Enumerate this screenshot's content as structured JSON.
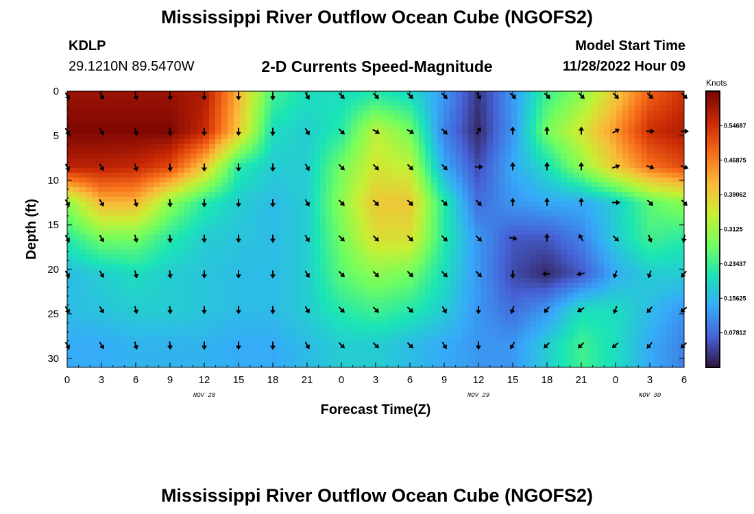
{
  "page": {
    "title": "Mississippi River Outflow Ocean Cube (NGOFS2)",
    "title_repeat": "Mississippi River Outflow Ocean Cube (NGOFS2)",
    "station_id": "KDLP",
    "station_coords": "29.1210N  89.5470W",
    "product": "2-D Currents Speed-Magnitude",
    "model_start_label": "Model Start Time",
    "model_start_value": "11/28/2022 Hour 09"
  },
  "chart_data": {
    "type": "heatmap",
    "title": "2-D Currents Speed-Magnitude",
    "xlabel": "Forecast Time(Z)",
    "ylabel": "Depth (ft)",
    "xlim": [
      0,
      54
    ],
    "ylim": [
      31,
      0
    ],
    "x_tick_labels": [
      "0",
      "3",
      "6",
      "9",
      "12",
      "15",
      "18",
      "21",
      "0",
      "3",
      "6",
      "9",
      "12",
      "15",
      "18",
      "21",
      "0",
      "3",
      "6"
    ],
    "y_ticks": [
      0,
      5,
      10,
      15,
      20,
      25,
      30
    ],
    "date_labels": [
      {
        "hour": 12,
        "label": "NOV 28"
      },
      {
        "hour": 36,
        "label": "NOV 29"
      },
      {
        "hour": 51,
        "label": "NOV 30"
      }
    ],
    "colorbar": {
      "unit": "Knots",
      "range": [
        0.0,
        0.625
      ],
      "tick_labels": [
        "0.07812",
        "0.15625",
        "0.23437",
        "0.3125",
        "0.39062",
        "0.46875",
        "0.54687"
      ],
      "tick_values": [
        0.07812,
        0.15625,
        0.23437,
        0.3125,
        0.39062,
        0.46875,
        0.54687
      ],
      "colormap": [
        "#30123b",
        "#4662d7",
        "#36aaf9",
        "#1ae4b6",
        "#72fe5e",
        "#c8ef34",
        "#faba39",
        "#f66b19",
        "#ca2a04",
        "#7a0403"
      ]
    },
    "arrow_depths": [
      0.5,
      4.5,
      8.5,
      12.5,
      16.5,
      20.5,
      24.5,
      28.5
    ],
    "arrow_hours": [
      0,
      3,
      6,
      9,
      12,
      15,
      18,
      21,
      24,
      27,
      30,
      33,
      36,
      39,
      42,
      45,
      48,
      51,
      54
    ],
    "speed_hours": [
      0,
      3,
      6,
      9,
      12,
      15,
      18,
      21,
      24,
      27,
      30,
      33,
      36,
      39,
      42,
      45,
      48,
      51,
      54
    ],
    "speed_knots": [
      [
        0.6,
        0.6,
        0.6,
        0.6,
        0.58,
        0.42,
        0.24,
        0.2,
        0.2,
        0.22,
        0.2,
        0.12,
        0.03,
        0.12,
        0.24,
        0.3,
        0.4,
        0.5,
        0.55
      ],
      [
        0.62,
        0.62,
        0.62,
        0.62,
        0.56,
        0.4,
        0.2,
        0.18,
        0.22,
        0.34,
        0.28,
        0.1,
        0.02,
        0.12,
        0.28,
        0.36,
        0.45,
        0.55,
        0.58
      ],
      [
        0.57,
        0.57,
        0.56,
        0.52,
        0.4,
        0.22,
        0.18,
        0.18,
        0.28,
        0.36,
        0.34,
        0.14,
        0.05,
        0.14,
        0.2,
        0.3,
        0.4,
        0.48,
        0.52
      ],
      [
        0.3,
        0.42,
        0.42,
        0.3,
        0.22,
        0.18,
        0.16,
        0.18,
        0.3,
        0.4,
        0.4,
        0.22,
        0.08,
        0.12,
        0.14,
        0.14,
        0.18,
        0.26,
        0.3
      ],
      [
        0.22,
        0.28,
        0.28,
        0.22,
        0.18,
        0.17,
        0.16,
        0.18,
        0.28,
        0.37,
        0.37,
        0.22,
        0.12,
        0.06,
        0.06,
        0.1,
        0.18,
        0.24,
        0.22
      ],
      [
        0.16,
        0.18,
        0.2,
        0.18,
        0.17,
        0.16,
        0.16,
        0.18,
        0.26,
        0.3,
        0.28,
        0.2,
        0.12,
        0.05,
        0.02,
        0.06,
        0.14,
        0.18,
        0.18
      ],
      [
        0.16,
        0.17,
        0.18,
        0.18,
        0.17,
        0.16,
        0.16,
        0.18,
        0.22,
        0.24,
        0.22,
        0.18,
        0.12,
        0.08,
        0.12,
        0.2,
        0.2,
        0.16,
        0.12
      ],
      [
        0.14,
        0.14,
        0.15,
        0.15,
        0.15,
        0.14,
        0.14,
        0.16,
        0.18,
        0.18,
        0.16,
        0.14,
        0.12,
        0.12,
        0.18,
        0.24,
        0.2,
        0.14,
        0.1
      ]
    ],
    "arrow_directions_deg": [
      [
        150,
        150,
        165,
        175,
        180,
        180,
        180,
        150,
        135,
        135,
        135,
        135,
        150,
        135,
        135,
        135,
        135,
        135,
        135
      ],
      [
        150,
        150,
        165,
        175,
        180,
        180,
        180,
        150,
        135,
        120,
        120,
        135,
        30,
        0,
        0,
        0,
        60,
        90,
        90
      ],
      [
        150,
        150,
        165,
        175,
        180,
        180,
        180,
        150,
        135,
        135,
        135,
        135,
        90,
        0,
        0,
        0,
        70,
        110,
        110
      ],
      [
        150,
        150,
        165,
        175,
        180,
        180,
        180,
        150,
        135,
        135,
        135,
        135,
        135,
        0,
        0,
        0,
        90,
        135,
        135
      ],
      [
        150,
        150,
        165,
        175,
        180,
        180,
        180,
        150,
        135,
        135,
        135,
        135,
        135,
        100,
        0,
        330,
        135,
        160,
        190
      ],
      [
        150,
        150,
        165,
        175,
        180,
        180,
        180,
        150,
        135,
        135,
        135,
        135,
        135,
        180,
        270,
        260,
        200,
        200,
        220
      ],
      [
        150,
        150,
        165,
        175,
        180,
        180,
        180,
        150,
        135,
        135,
        135,
        150,
        180,
        200,
        220,
        240,
        200,
        220,
        230
      ],
      [
        150,
        150,
        165,
        175,
        180,
        180,
        180,
        150,
        135,
        135,
        135,
        150,
        180,
        210,
        225,
        225,
        230,
        220,
        225
      ]
    ]
  }
}
